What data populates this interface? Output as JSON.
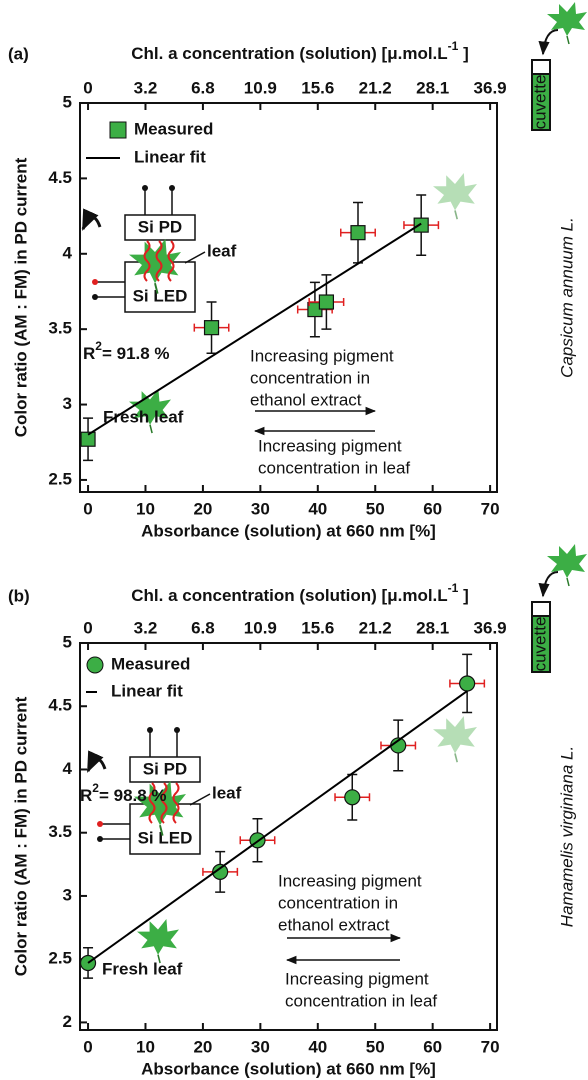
{
  "chart_data": [
    {
      "type": "scatter",
      "panel_label": "(a)",
      "x_label": "Absorbance (solution) at 660 nm [%]",
      "y_label": "Color ratio (AM : FM) in PD current",
      "x2_label": {
        "text": "Chl. a concentration (solution) [μ.mol.L",
        "sup": "-1",
        "end": " ]"
      },
      "xlim": [
        -1.4,
        71.2
      ],
      "xticks": [
        0,
        10,
        20,
        30,
        40,
        50,
        60,
        70
      ],
      "x2ticks": [
        0,
        3.2,
        6.8,
        10.9,
        15.6,
        21.2,
        28.1,
        36.9
      ],
      "ylim": [
        2.42,
        5
      ],
      "yticks": [
        2.5,
        3,
        3.5,
        4,
        4.5,
        5
      ],
      "series": [
        {
          "name": "Measured",
          "marker": "square",
          "color": "#3cae45",
          "xerr_color": "#e02020",
          "x": [
            0,
            21.5,
            39.5,
            41.5,
            47,
            58
          ],
          "values": [
            2.77,
            3.51,
            3.63,
            3.68,
            4.14,
            4.19
          ],
          "yerr": [
            0.14,
            0.17,
            0.18,
            0.18,
            0.2,
            0.2
          ],
          "xerr": [
            1,
            3,
            3,
            3,
            3,
            3
          ]
        },
        {
          "name": "Linear fit",
          "color": "#000000",
          "x": [
            0,
            58
          ],
          "values": [
            2.8,
            4.2
          ]
        }
      ],
      "r2_label": {
        "text": "R",
        "sup": "2",
        "end": "= 91.8 %"
      },
      "annotations": {
        "fresh_leaf": "Fresh leaf",
        "extract": [
          "Increasing pigment",
          "concentration in",
          "ethanol extract"
        ],
        "leaf_direction": [
          "Increasing pigment",
          "concentration in leaf"
        ]
      },
      "inset": {
        "photodiode": "Si PD",
        "led": "Si LED",
        "leaf": "leaf"
      },
      "species": "Capsicum annuum L.",
      "cuvette": "cuvette"
    },
    {
      "type": "scatter",
      "panel_label": "(b)",
      "x_label": "Absorbance (solution) at 660 nm [%]",
      "y_label": "Color ratio (AM : FM) in PD current",
      "x2_label": {
        "text": "Chl. a concentration (solution) [μ.mol.L",
        "sup": "-1",
        "end": " ]"
      },
      "xlim": [
        -1.4,
        71.2
      ],
      "xticks": [
        0,
        10,
        20,
        30,
        40,
        50,
        60,
        70
      ],
      "x2ticks": [
        0,
        3.2,
        6.8,
        10.9,
        15.6,
        21.2,
        28.1,
        36.9
      ],
      "ylim": [
        1.94,
        5
      ],
      "yticks": [
        2,
        2.5,
        3,
        3.5,
        4,
        4.5,
        5
      ],
      "series": [
        {
          "name": "Measured",
          "marker": "circle",
          "color": "#3cae45",
          "xerr_color": "#e02020",
          "x": [
            0,
            23,
            29.5,
            46,
            54,
            66
          ],
          "values": [
            2.47,
            3.19,
            3.44,
            3.78,
            4.19,
            4.68
          ],
          "yerr": [
            0.12,
            0.16,
            0.17,
            0.18,
            0.2,
            0.23
          ],
          "xerr": [
            1,
            3,
            3,
            3,
            3,
            3
          ]
        },
        {
          "name": "Linear fit",
          "color": "#000000",
          "x": [
            0,
            66
          ],
          "values": [
            2.47,
            4.62
          ]
        }
      ],
      "r2_label": {
        "text": "R",
        "sup": "2",
        "end": "= 98.8 %"
      },
      "annotations": {
        "fresh_leaf": "Fresh leaf",
        "extract": [
          "Increasing pigment",
          "concentration in",
          "ethanol extract"
        ],
        "leaf_direction": [
          "Increasing pigment",
          "concentration in leaf"
        ]
      },
      "inset": {
        "photodiode": "Si PD",
        "led": "Si LED",
        "leaf": "leaf"
      },
      "species": "Hamamelis virginiana L.",
      "cuvette": "cuvette"
    }
  ]
}
